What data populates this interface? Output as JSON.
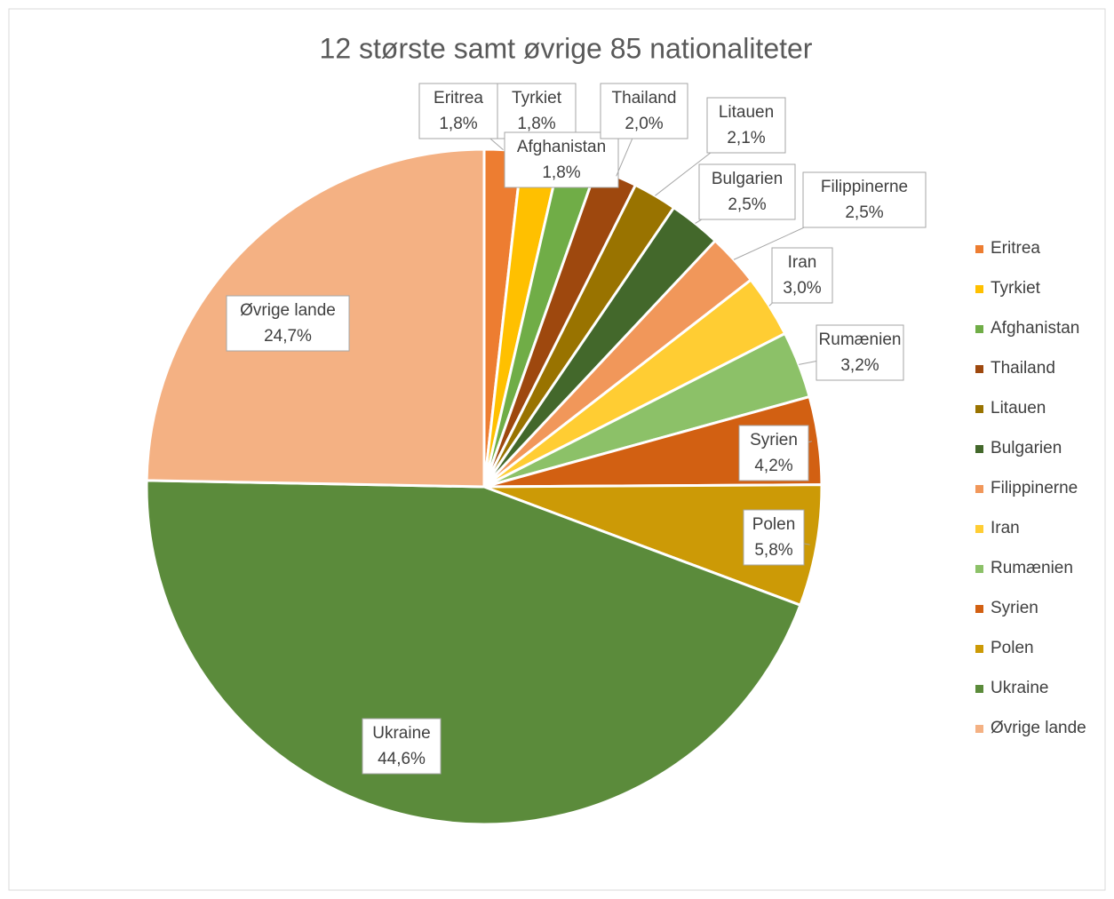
{
  "chart_data": {
    "type": "pie",
    "title": "12 største samt øvrige 85 nationaliteter",
    "categories": [
      "Eritrea",
      "Tyrkiet",
      "Afghanistan",
      "Thailand",
      "Litauen",
      "Bulgarien",
      "Filippinerne",
      "Iran",
      "Rumænien",
      "Syrien",
      "Polen",
      "Ukraine",
      "Øvrige lande"
    ],
    "values": [
      1.8,
      1.8,
      1.8,
      2.0,
      2.1,
      2.5,
      2.5,
      3.0,
      3.2,
      4.2,
      5.8,
      44.6,
      24.7
    ],
    "value_labels": [
      "1,8%",
      "1,8%",
      "1,8%",
      "2,0%",
      "2,1%",
      "2,5%",
      "2,5%",
      "3,0%",
      "3,2%",
      "4,2%",
      "5,8%",
      "44,6%",
      "24,7%"
    ],
    "colors": [
      "#ed7d31",
      "#ffc000",
      "#70ad47",
      "#9e480e",
      "#997300",
      "#43682b",
      "#f1975a",
      "#ffcd33",
      "#8cc168",
      "#d26012",
      "#cc9a06",
      "#5b8b3b",
      "#f4b183"
    ],
    "legend": "right"
  }
}
